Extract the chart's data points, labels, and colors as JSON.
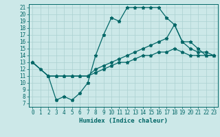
{
  "xlabel": "Humidex (Indice chaleur)",
  "bg_color": "#cce8e8",
  "grid_color": "#aad0d0",
  "line_color": "#006666",
  "xlim": [
    -0.5,
    23.5
  ],
  "ylim": [
    6.5,
    21.5
  ],
  "yticks": [
    7,
    8,
    9,
    10,
    11,
    12,
    13,
    14,
    15,
    16,
    17,
    18,
    19,
    20,
    21
  ],
  "xticks": [
    0,
    1,
    2,
    3,
    4,
    5,
    6,
    7,
    8,
    9,
    10,
    11,
    12,
    13,
    14,
    15,
    16,
    17,
    18,
    19,
    20,
    21,
    22,
    23
  ],
  "curve1_x": [
    0,
    1,
    2,
    3,
    4,
    5,
    6,
    7,
    8,
    9,
    10,
    11,
    12,
    13,
    14,
    15,
    16,
    17,
    18,
    19,
    20,
    21,
    22,
    23
  ],
  "curve1_y": [
    13,
    12,
    11,
    7.5,
    8,
    7.5,
    8.5,
    10,
    14,
    17,
    19.5,
    19,
    21,
    21,
    21,
    21,
    21,
    19.5,
    18.5,
    16,
    15,
    14.5,
    14.5,
    14
  ],
  "curve2_x": [
    0,
    2,
    3,
    4,
    5,
    6,
    7,
    8,
    9,
    10,
    11,
    12,
    13,
    14,
    15,
    16,
    17,
    18,
    19,
    20,
    21,
    22,
    23
  ],
  "curve2_y": [
    13,
    11,
    11,
    11,
    11,
    11,
    11,
    12,
    12.5,
    13,
    13.5,
    14,
    14.5,
    15,
    15.5,
    16,
    16.5,
    18.5,
    16,
    16,
    15,
    14,
    14
  ],
  "curve3_x": [
    0,
    2,
    3,
    4,
    5,
    6,
    7,
    8,
    9,
    10,
    11,
    12,
    13,
    14,
    15,
    16,
    17,
    18,
    19,
    20,
    21,
    22,
    23
  ],
  "curve3_y": [
    13,
    11,
    11,
    11,
    11,
    11,
    11,
    11.5,
    12,
    12.5,
    13,
    13,
    13.5,
    14,
    14,
    14.5,
    14.5,
    15,
    14.5,
    14,
    14,
    14,
    14
  ],
  "title_fontsize": 7,
  "xlabel_fontsize": 6.5,
  "tick_fontsize": 5.5
}
